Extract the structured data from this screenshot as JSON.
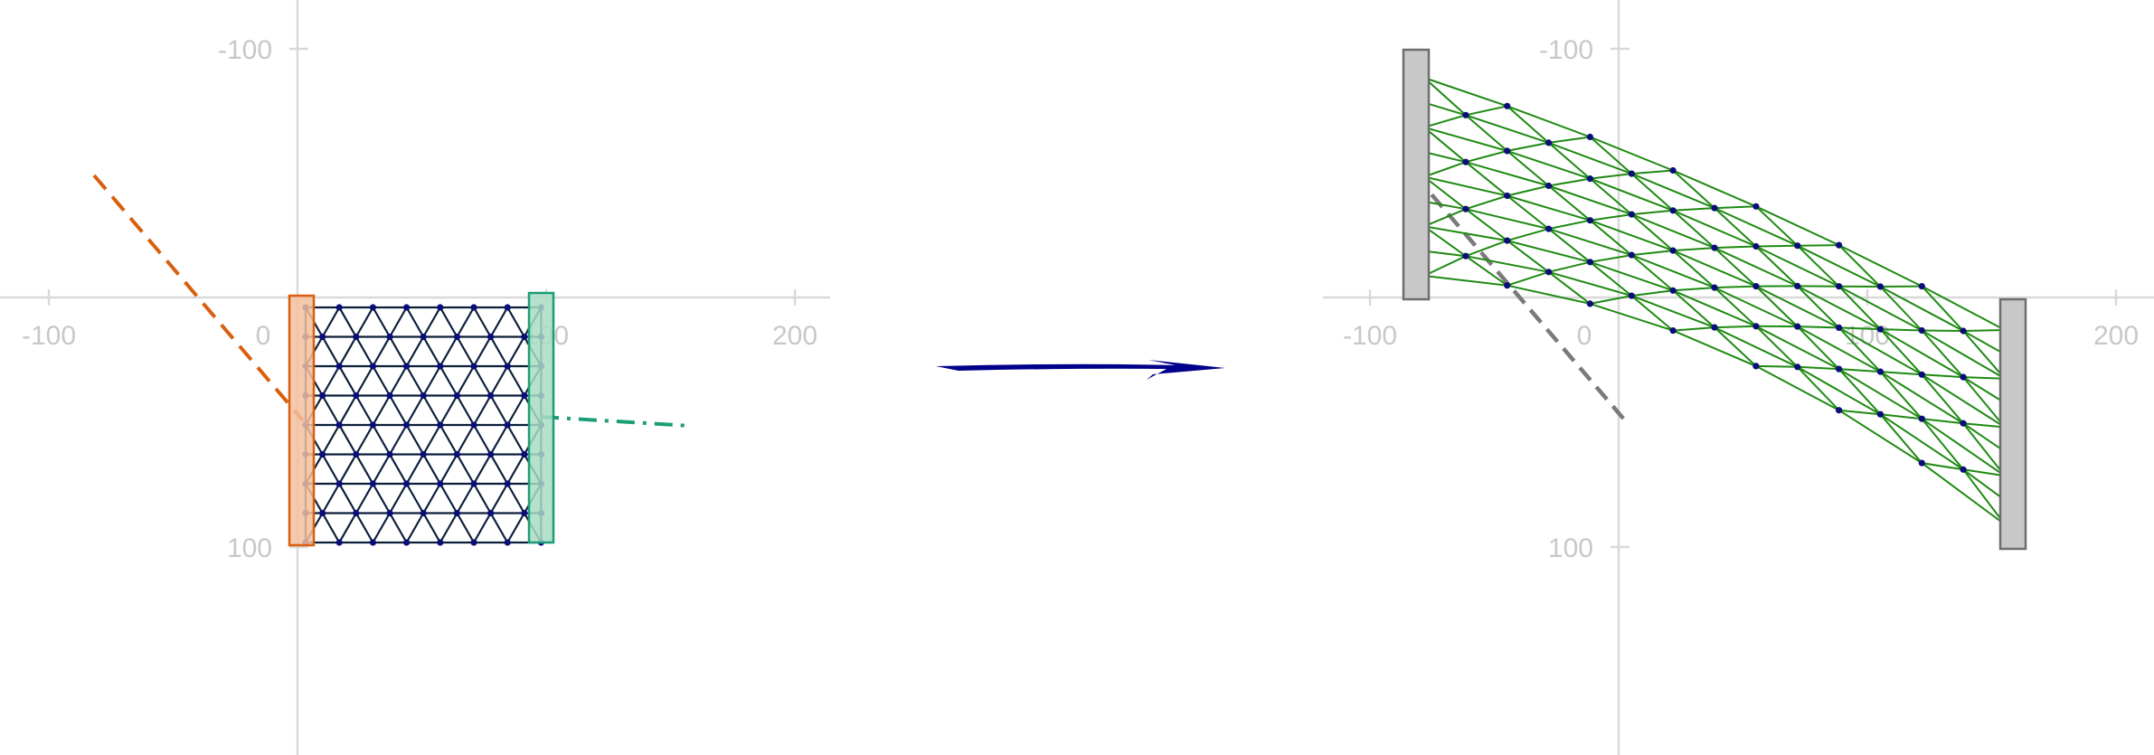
{
  "colors": {
    "axis": "#d9d9d9",
    "tick_label": "#c8c8c8",
    "mesh_left": "#0b1f3a",
    "mesh_right": "#1e8a12",
    "node": "#0c0c7a",
    "clamp_left_fill": "#f2bf9e",
    "clamp_left_stroke": "#d95f0e",
    "clamp_right_fill": "#a9dcc4",
    "clamp_right_stroke": "#1b9e77",
    "path_left": "#d95f0e",
    "path_right": "#1b9e77",
    "clamp_deformed_fill": "#c8c8c8",
    "clamp_deformed_stroke": "#6e6e6e",
    "path_deformed": "#7a7a7a",
    "arrow": "#00008b"
  },
  "panels": [
    {
      "id": "before",
      "x_ticks": [
        "-100",
        "0",
        "100",
        "200"
      ],
      "y_ticks": [
        "-100",
        "100"
      ]
    },
    {
      "id": "after",
      "x_ticks": [
        "-100",
        "0",
        "100",
        "200"
      ],
      "y_ticks": [
        "-100",
        "100"
      ]
    }
  ],
  "transition": {
    "icon": "right-arrow-icon"
  }
}
